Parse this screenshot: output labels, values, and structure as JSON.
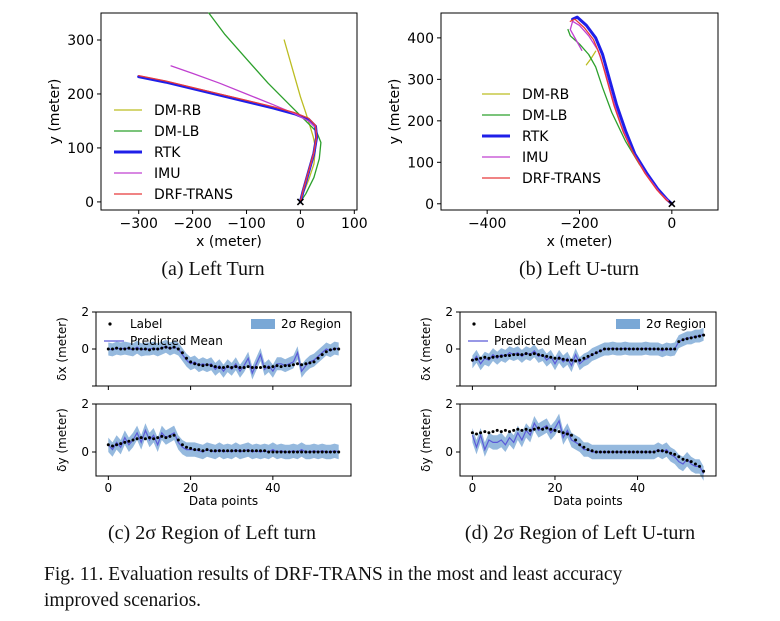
{
  "captions": {
    "a": "(a) Left Turn",
    "b": "(b) Left U-turn",
    "c": "(c) 2σ Region of Left turn",
    "d": "(d) 2σ Region of Left U-turn",
    "figure_line1": "Fig. 11.   Evaluation results of DRF-TRANS in the most and least accuracy",
    "figure_line2": "improved scenarios."
  },
  "chart_data": [
    {
      "id": "a",
      "type": "line",
      "xlabel": "x (meter)",
      "ylabel": "y (meter)",
      "xlim": [
        -370,
        105
      ],
      "ylim": [
        -15,
        350
      ],
      "xticks": [
        -300,
        -200,
        -100,
        0,
        100
      ],
      "yticks": [
        0,
        100,
        200,
        300
      ],
      "legend_position": "left",
      "series": [
        {
          "name": "DM-RB",
          "color": "#bcbd22",
          "width": 1.3,
          "x": [
            -30,
            -20,
            -10,
            0,
            10,
            18,
            24,
            28,
            25,
            15,
            5,
            0
          ],
          "y": [
            300,
            265,
            230,
            195,
            165,
            140,
            120,
            100,
            70,
            40,
            15,
            0
          ]
        },
        {
          "name": "DM-LB",
          "color": "#2ca02c",
          "width": 1.3,
          "x": [
            -170,
            -140,
            -100,
            -60,
            -20,
            10,
            30,
            38,
            35,
            25,
            10,
            0
          ],
          "y": [
            350,
            310,
            265,
            220,
            180,
            150,
            130,
            110,
            80,
            45,
            15,
            0
          ]
        },
        {
          "name": "RTK",
          "color": "#1f1fe8",
          "width": 3,
          "x": [
            -300,
            -250,
            -200,
            -150,
            -100,
            -50,
            -10,
            15,
            28,
            30,
            25,
            15,
            5,
            0
          ],
          "y": [
            232,
            222,
            210,
            198,
            186,
            174,
            163,
            153,
            140,
            120,
            90,
            55,
            20,
            0
          ]
        },
        {
          "name": "IMU",
          "color": "#c040d0",
          "width": 1.3,
          "x": [
            -240,
            -200,
            -150,
            -100,
            -50,
            -10,
            15,
            28,
            30,
            25,
            15,
            5,
            0
          ],
          "y": [
            252,
            238,
            220,
            200,
            180,
            163,
            150,
            138,
            120,
            90,
            55,
            20,
            0
          ]
        },
        {
          "name": "DRF-TRANS",
          "color": "#e8393a",
          "width": 1.3,
          "x": [
            -300,
            -250,
            -200,
            -150,
            -100,
            -50,
            -10,
            15,
            28,
            30,
            25,
            15,
            5,
            0
          ],
          "y": [
            234,
            224,
            212,
            200,
            188,
            176,
            165,
            155,
            142,
            122,
            92,
            57,
            22,
            0
          ]
        }
      ],
      "markers": [
        {
          "x": 0,
          "y": 0,
          "symbol": "x"
        }
      ]
    },
    {
      "id": "b",
      "type": "line",
      "xlabel": "x (meter)",
      "ylabel": "y (meter)",
      "xlim": [
        -500,
        100
      ],
      "ylim": [
        -15,
        460
      ],
      "xticks": [
        -400,
        -200,
        0
      ],
      "yticks": [
        0,
        100,
        200,
        300,
        400
      ],
      "legend_position": "left",
      "series": [
        {
          "name": "DM-RB",
          "color": "#bcbd22",
          "width": 1.3,
          "x": [
            -185,
            -175,
            -165
          ],
          "y": [
            335,
            350,
            368
          ]
        },
        {
          "name": "DM-LB",
          "color": "#2ca02c",
          "width": 1.3,
          "x": [
            -225,
            -220,
            -200,
            -180,
            -165,
            -150,
            -130,
            -100,
            -70,
            -40,
            -15,
            0
          ],
          "y": [
            420,
            405,
            385,
            360,
            330,
            280,
            220,
            150,
            95,
            50,
            15,
            0
          ]
        },
        {
          "name": "RTK",
          "color": "#1f1fe8",
          "width": 3,
          "x": [
            -215,
            -205,
            -185,
            -165,
            -150,
            -135,
            -120,
            -100,
            -80,
            -55,
            -30,
            -10,
            0
          ],
          "y": [
            445,
            450,
            430,
            400,
            360,
            300,
            240,
            175,
            120,
            75,
            35,
            10,
            0
          ]
        },
        {
          "name": "IMU",
          "color": "#c040d0",
          "width": 1.3,
          "x": [
            -195,
            -205,
            -220,
            -215,
            -200,
            -180,
            -160,
            -145,
            -130,
            -110,
            -85,
            -55,
            -25,
            0
          ],
          "y": [
            370,
            390,
            420,
            440,
            430,
            405,
            370,
            320,
            260,
            190,
            125,
            70,
            25,
            0
          ]
        },
        {
          "name": "DRF-TRANS",
          "color": "#e8393a",
          "width": 1.3,
          "x": [
            -220,
            -210,
            -190,
            -170,
            -155,
            -140,
            -125,
            -105,
            -82,
            -58,
            -32,
            -12,
            0
          ],
          "y": [
            440,
            445,
            425,
            396,
            356,
            296,
            236,
            172,
            118,
            73,
            33,
            9,
            0
          ]
        }
      ],
      "markers": [
        {
          "x": 0,
          "y": 0,
          "symbol": "x"
        }
      ]
    },
    {
      "id": "c",
      "type": "line",
      "xlabel": "Data points",
      "xlim": [
        -3,
        59
      ],
      "xticks": [
        0,
        20,
        40
      ],
      "panels": [
        {
          "ylabel": "δx (meter)",
          "ylim": [
            -2,
            2
          ],
          "yticks": [
            -2,
            0,
            2
          ],
          "ytick_labels": [
            "",
            "0",
            "2"
          ],
          "legend": {
            "label": "Label",
            "mean": "Predicted Mean",
            "band": "2σ Region"
          },
          "label_values": [
            0,
            0,
            0.05,
            0,
            0,
            0.05,
            0,
            0,
            0,
            0,
            -0.05,
            0,
            0,
            0.05,
            0.1,
            0.05,
            0.1,
            0,
            -0.2,
            -0.5,
            -0.7,
            -0.8,
            -0.85,
            -0.9,
            -0.85,
            -0.9,
            -0.95,
            -1,
            -1,
            -0.95,
            -1,
            -0.95,
            -1,
            -1,
            -0.95,
            -1,
            -1,
            -1,
            -0.95,
            -1,
            -0.95,
            -0.9,
            -0.95,
            -0.9,
            -0.9,
            -0.85,
            -0.8,
            -0.85,
            -0.8,
            -0.75,
            -0.7,
            -0.5,
            -0.3,
            -0.15,
            -0.05,
            0,
            0
          ],
          "mean_values": [
            0,
            -0.05,
            0.05,
            0,
            0.05,
            0,
            -0.05,
            0.1,
            -0.05,
            0,
            0,
            0.05,
            -0.05,
            0.05,
            0.15,
            0,
            0.1,
            0,
            -0.3,
            -0.6,
            -0.8,
            -0.7,
            -0.9,
            -0.8,
            -0.9,
            -0.8,
            -1.1,
            -0.9,
            -1.2,
            -0.9,
            -1.1,
            -0.8,
            -1.2,
            -0.9,
            -0.5,
            -1.3,
            -0.8,
            -0.3,
            -1.1,
            -0.9,
            -1.2,
            -0.8,
            -0.8,
            -0.9,
            -0.8,
            -0.7,
            -0.2,
            -1.2,
            -0.9,
            -0.7,
            -0.6,
            -0.4,
            -0.2,
            0,
            -0.1,
            0.05,
            0
          ],
          "band_sigma": 0.35
        },
        {
          "ylabel": "δy (meter)",
          "ylim": [
            -1,
            2
          ],
          "yticks": [
            0,
            2
          ],
          "ytick_labels": [
            "0",
            "2"
          ],
          "label_values": [
            0.3,
            0.25,
            0.3,
            0.35,
            0.4,
            0.45,
            0.5,
            0.55,
            0.6,
            0.55,
            0.6,
            0.55,
            0.6,
            0.65,
            0.6,
            0.65,
            0.7,
            0.5,
            0.3,
            0.2,
            0.15,
            0.1,
            0.1,
            0.05,
            0.1,
            0.05,
            0.05,
            0.05,
            0.05,
            0.05,
            0.05,
            0.05,
            0.05,
            0.05,
            0.05,
            0.05,
            0.05,
            0.05,
            0.05,
            0,
            0,
            0,
            0,
            0,
            0,
            0,
            0,
            0,
            0,
            0,
            0,
            0,
            0,
            0,
            0,
            0,
            0
          ],
          "mean_values": [
            0.3,
            0.1,
            0.4,
            0.2,
            0.6,
            0.3,
            0.5,
            0.8,
            0.4,
            0.9,
            0.5,
            0.7,
            0.3,
            0.8,
            0.6,
            0.7,
            0.8,
            0.4,
            0.2,
            0.1,
            0.1,
            0.1,
            0.05,
            0,
            0.1,
            0.05,
            0,
            0.1,
            0,
            0.05,
            0,
            0.1,
            0,
            0.05,
            0.1,
            0,
            0.05,
            0,
            0.05,
            0,
            0.1,
            0,
            0.05,
            0,
            0,
            0.05,
            0,
            0.1,
            0,
            0,
            0.05,
            0,
            0.05,
            0,
            0,
            0.05,
            0
          ],
          "band_sigma": 0.3
        }
      ]
    },
    {
      "id": "d",
      "type": "line",
      "xlabel": "Data points",
      "xlim": [
        -3,
        59
      ],
      "xticks": [
        0,
        20,
        40
      ],
      "panels": [
        {
          "ylabel": "δx (meter)",
          "ylim": [
            -2,
            2
          ],
          "yticks": [
            -2,
            0,
            2
          ],
          "ytick_labels": [
            "",
            "0",
            "2"
          ],
          "legend": {
            "label": "Label",
            "mean": "Predicted Mean",
            "band": "2σ Region"
          },
          "label_values": [
            -0.6,
            -0.55,
            -0.5,
            -0.45,
            -0.5,
            -0.45,
            -0.4,
            -0.4,
            -0.35,
            -0.35,
            -0.3,
            -0.3,
            -0.3,
            -0.25,
            -0.3,
            -0.25,
            -0.3,
            -0.35,
            -0.4,
            -0.45,
            -0.5,
            -0.5,
            -0.55,
            -0.6,
            -0.6,
            -0.65,
            -0.6,
            -0.5,
            -0.4,
            -0.3,
            -0.2,
            -0.1,
            0,
            0,
            0,
            0,
            0,
            0,
            0,
            0,
            0,
            0,
            0,
            0,
            0,
            0,
            0,
            0,
            0,
            0,
            0.4,
            0.5,
            0.55,
            0.6,
            0.65,
            0.7,
            0.75
          ],
          "mean_values": [
            -0.7,
            -0.4,
            -0.8,
            -0.5,
            -0.6,
            -0.3,
            -0.5,
            -0.3,
            -0.4,
            -0.2,
            -0.3,
            -0.2,
            -0.4,
            -0.2,
            -0.3,
            -0.1,
            -0.4,
            -0.3,
            -0.6,
            -0.4,
            -0.8,
            -0.4,
            -0.7,
            -0.5,
            -0.9,
            -0.3,
            -0.8,
            -0.6,
            -0.5,
            -0.3,
            -0.2,
            -0.1,
            0,
            0,
            0.05,
            0,
            0,
            0.05,
            0,
            0,
            0,
            0,
            0.05,
            0,
            0,
            0,
            -0.1,
            0,
            -0.05,
            0,
            0.4,
            0.5,
            0.6,
            0.6,
            0.7,
            0.7,
            0.8
          ],
          "band_sigma": 0.35
        },
        {
          "ylabel": "δy (meter)",
          "ylim": [
            -1,
            2
          ],
          "yticks": [
            0,
            2
          ],
          "ytick_labels": [
            "0",
            "2"
          ],
          "label_values": [
            0.8,
            0.75,
            0.8,
            0.85,
            0.8,
            0.85,
            0.9,
            0.85,
            0.9,
            0.85,
            0.9,
            0.95,
            0.9,
            0.95,
            0.9,
            0.95,
            1,
            0.95,
            1,
            0.95,
            0.9,
            0.85,
            0.8,
            0.75,
            0.7,
            0.5,
            0.3,
            0.2,
            0.1,
            0.05,
            0,
            0,
            0,
            0,
            0,
            0,
            0,
            0,
            0,
            0,
            0,
            0,
            0,
            0,
            0,
            0.05,
            0.05,
            0,
            -0.05,
            -0.1,
            -0.2,
            -0.3,
            -0.35,
            -0.4,
            -0.5,
            -0.6,
            -0.8
          ],
          "mean_values": [
            0.7,
            0.2,
            0.7,
            0.1,
            0.5,
            0.4,
            0.4,
            0.5,
            0.3,
            0.6,
            0.4,
            0.8,
            0.5,
            0.9,
            0.7,
            1.2,
            0.9,
            1,
            1.1,
            0.8,
            1,
            1.3,
            0.6,
            0.9,
            0.5,
            0.4,
            0.3,
            0.1,
            0.1,
            0,
            0,
            0,
            0,
            0,
            0,
            0,
            0,
            0,
            0,
            0,
            0,
            0,
            0,
            0,
            0,
            0.1,
            0,
            0.1,
            -0.1,
            -0.2,
            -0.4,
            -0.5,
            -0.3,
            -0.5,
            -0.6,
            -0.6,
            -0.9
          ],
          "band_sigma": 0.3
        }
      ]
    }
  ]
}
